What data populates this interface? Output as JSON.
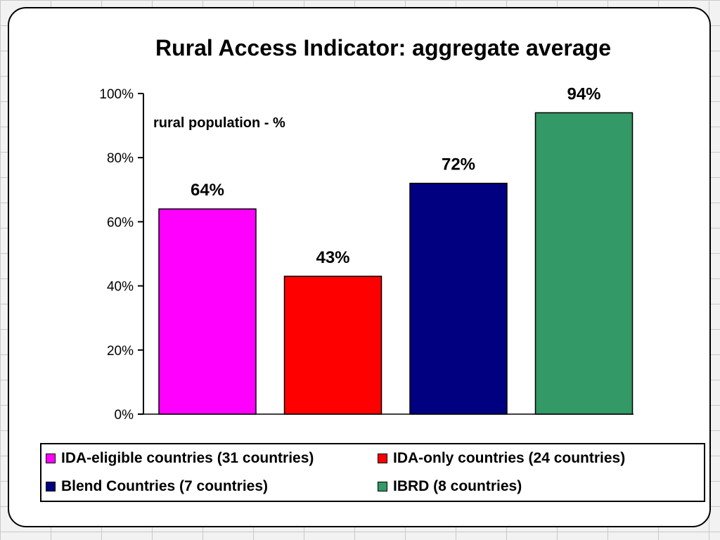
{
  "chart_data": {
    "type": "bar",
    "title": "Rural Access Indicator: aggregate average",
    "ylabel": "rural population - %",
    "xlabel": "",
    "ylim": [
      0,
      100
    ],
    "y_ticks": [
      "0%",
      "20%",
      "40%",
      "60%",
      "80%",
      "100%"
    ],
    "y_tick_values": [
      0,
      20,
      40,
      60,
      80,
      100
    ],
    "grid": false,
    "legend_position": "bottom",
    "categories": [
      "IDA-eligible countries (31 countries)",
      "IDA-only countries (24 countries)",
      "Blend Countries (7 countries)",
      "IBRD (8 countries)"
    ],
    "values": [
      64,
      43,
      72,
      94
    ],
    "data_labels": [
      "64%",
      "43%",
      "72%",
      "94%"
    ],
    "colors": [
      "#ff00ff",
      "#ff0000",
      "#000080",
      "#339966"
    ]
  }
}
